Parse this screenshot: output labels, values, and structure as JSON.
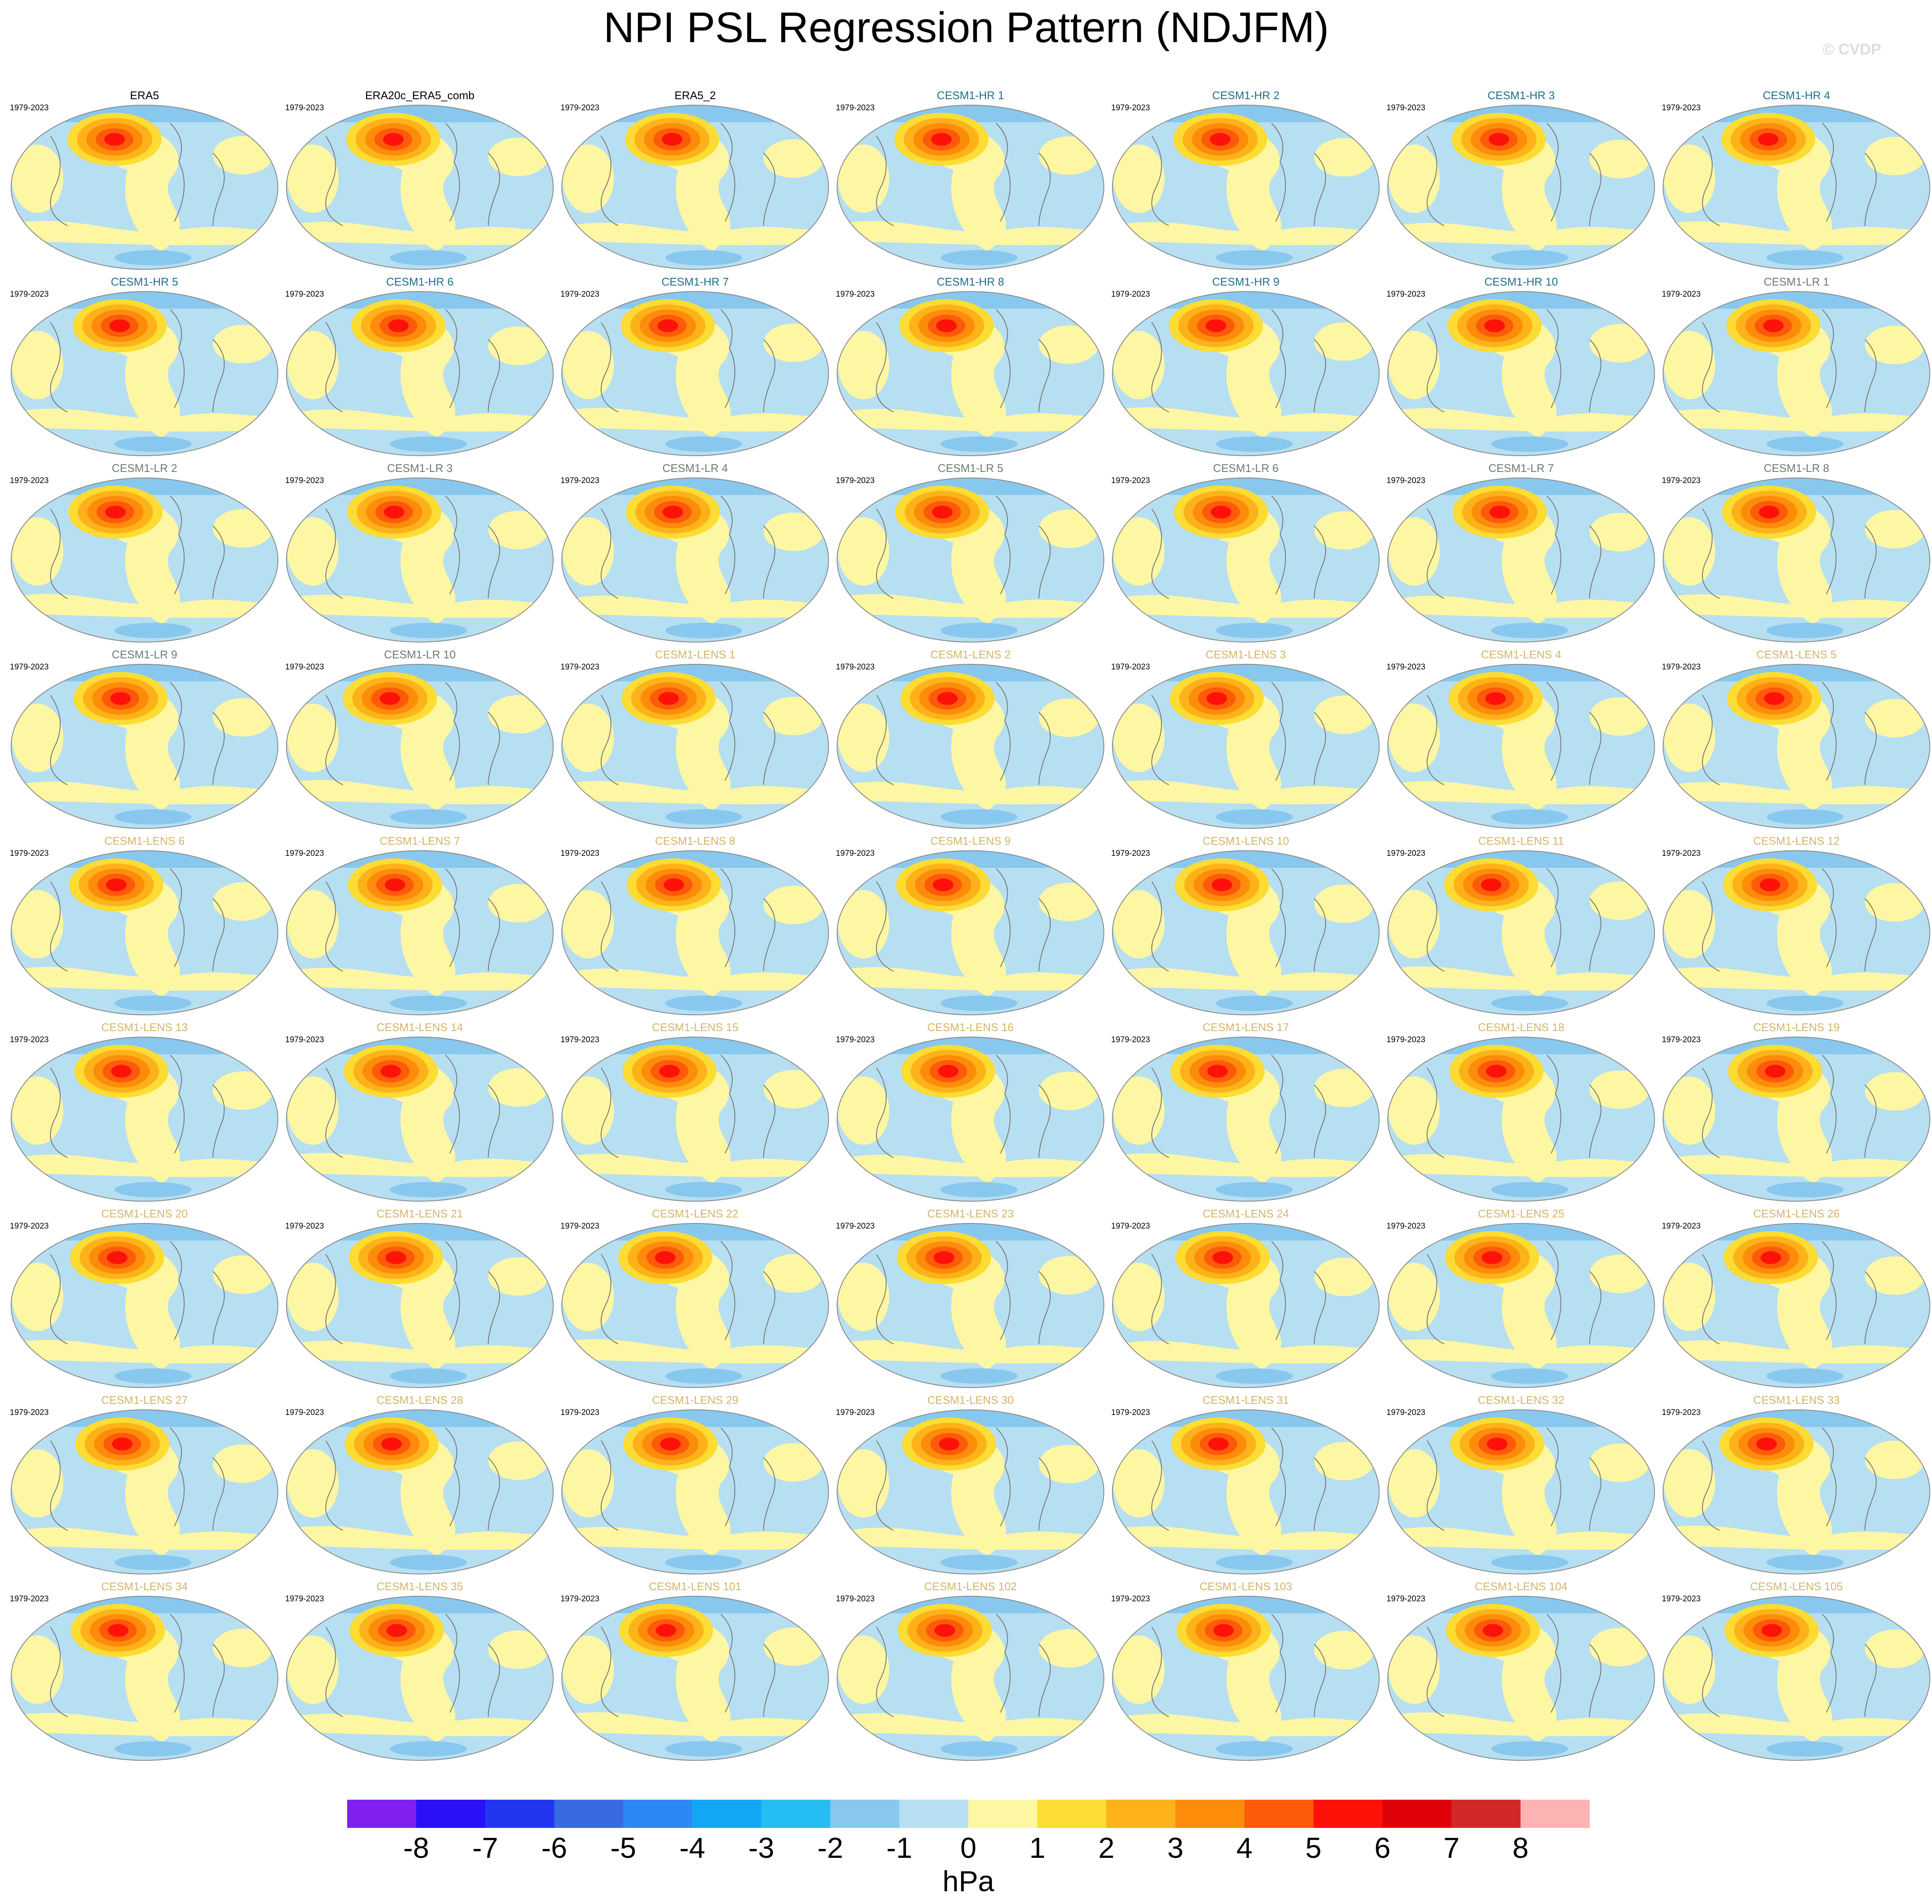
{
  "title": "NPI PSL Regression Pattern (NDJFM)",
  "watermark": "© CVDP",
  "panels": [
    {
      "title": "ERA5",
      "period": "1979-2023",
      "color": "#000000"
    },
    {
      "title": "ERA20c_ERA5_comb",
      "period": "1979-2023",
      "color": "#000000"
    },
    {
      "title": "ERA5_2",
      "period": "1979-2023",
      "color": "#000000"
    },
    {
      "title": "CESM1-HR 1",
      "period": "1979-2023",
      "color": "#1f6e8c"
    },
    {
      "title": "CESM1-HR 2",
      "period": "1979-2023",
      "color": "#1f6e8c"
    },
    {
      "title": "CESM1-HR 3",
      "period": "1979-2023",
      "color": "#1f6e8c"
    },
    {
      "title": "CESM1-HR 4",
      "period": "1979-2023",
      "color": "#1f6e8c"
    },
    {
      "title": "CESM1-HR 5",
      "period": "1979-2023",
      "color": "#1f6e8c"
    },
    {
      "title": "CESM1-HR 6",
      "period": "1979-2023",
      "color": "#1f6e8c"
    },
    {
      "title": "CESM1-HR 7",
      "period": "1979-2023",
      "color": "#1f6e8c"
    },
    {
      "title": "CESM1-HR 8",
      "period": "1979-2023",
      "color": "#1f6e8c"
    },
    {
      "title": "CESM1-HR 9",
      "period": "1979-2023",
      "color": "#1f6e8c"
    },
    {
      "title": "CESM1-HR 10",
      "period": "1979-2023",
      "color": "#1f6e8c"
    },
    {
      "title": "CESM1-LR 1",
      "period": "1979-2023",
      "color": "#6e7a72"
    },
    {
      "title": "CESM1-LR 2",
      "period": "1979-2023",
      "color": "#6e7a72"
    },
    {
      "title": "CESM1-LR 3",
      "period": "1979-2023",
      "color": "#6e7a72"
    },
    {
      "title": "CESM1-LR 4",
      "period": "1979-2023",
      "color": "#6e7a72"
    },
    {
      "title": "CESM1-LR 5",
      "period": "1979-2023",
      "color": "#6e7a72"
    },
    {
      "title": "CESM1-LR 6",
      "period": "1979-2023",
      "color": "#6e7a72"
    },
    {
      "title": "CESM1-LR 7",
      "period": "1979-2023",
      "color": "#6e7a72"
    },
    {
      "title": "CESM1-LR 8",
      "period": "1979-2023",
      "color": "#6e7a72"
    },
    {
      "title": "CESM1-LR 9",
      "period": "1979-2023",
      "color": "#6e7a72"
    },
    {
      "title": "CESM1-LR 10",
      "period": "1979-2023",
      "color": "#6e7a72"
    },
    {
      "title": "CESM1-LENS 1",
      "period": "1979-2023",
      "color": "#d4b56a"
    },
    {
      "title": "CESM1-LENS 2",
      "period": "1979-2023",
      "color": "#d4b56a"
    },
    {
      "title": "CESM1-LENS 3",
      "period": "1979-2023",
      "color": "#d4b56a"
    },
    {
      "title": "CESM1-LENS 4",
      "period": "1979-2023",
      "color": "#d4b56a"
    },
    {
      "title": "CESM1-LENS 5",
      "period": "1979-2023",
      "color": "#d4b56a"
    },
    {
      "title": "CESM1-LENS 6",
      "period": "1979-2023",
      "color": "#d4b56a"
    },
    {
      "title": "CESM1-LENS 7",
      "period": "1979-2023",
      "color": "#d4b56a"
    },
    {
      "title": "CESM1-LENS 8",
      "period": "1979-2023",
      "color": "#d4b56a"
    },
    {
      "title": "CESM1-LENS 9",
      "period": "1979-2023",
      "color": "#d4b56a"
    },
    {
      "title": "CESM1-LENS 10",
      "period": "1979-2023",
      "color": "#d4b56a"
    },
    {
      "title": "CESM1-LENS 11",
      "period": "1979-2023",
      "color": "#d4b56a"
    },
    {
      "title": "CESM1-LENS 12",
      "period": "1979-2023",
      "color": "#d4b56a"
    },
    {
      "title": "CESM1-LENS 13",
      "period": "1979-2023",
      "color": "#d4b56a"
    },
    {
      "title": "CESM1-LENS 14",
      "period": "1979-2023",
      "color": "#d4b56a"
    },
    {
      "title": "CESM1-LENS 15",
      "period": "1979-2023",
      "color": "#d4b56a"
    },
    {
      "title": "CESM1-LENS 16",
      "period": "1979-2023",
      "color": "#d4b56a"
    },
    {
      "title": "CESM1-LENS 17",
      "period": "1979-2023",
      "color": "#d4b56a"
    },
    {
      "title": "CESM1-LENS 18",
      "period": "1979-2023",
      "color": "#d4b56a"
    },
    {
      "title": "CESM1-LENS 19",
      "period": "1979-2023",
      "color": "#d4b56a"
    },
    {
      "title": "CESM1-LENS 20",
      "period": "1979-2023",
      "color": "#d4b56a"
    },
    {
      "title": "CESM1-LENS 21",
      "period": "1979-2023",
      "color": "#d4b56a"
    },
    {
      "title": "CESM1-LENS 22",
      "period": "1979-2023",
      "color": "#d4b56a"
    },
    {
      "title": "CESM1-LENS 23",
      "period": "1979-2023",
      "color": "#d4b56a"
    },
    {
      "title": "CESM1-LENS 24",
      "period": "1979-2023",
      "color": "#d4b56a"
    },
    {
      "title": "CESM1-LENS 25",
      "period": "1979-2023",
      "color": "#d4b56a"
    },
    {
      "title": "CESM1-LENS 26",
      "period": "1979-2023",
      "color": "#d4b56a"
    },
    {
      "title": "CESM1-LENS 27",
      "period": "1979-2023",
      "color": "#d4b56a"
    },
    {
      "title": "CESM1-LENS 28",
      "period": "1979-2023",
      "color": "#d4b56a"
    },
    {
      "title": "CESM1-LENS 29",
      "period": "1979-2023",
      "color": "#d4b56a"
    },
    {
      "title": "CESM1-LENS 30",
      "period": "1979-2023",
      "color": "#d4b56a"
    },
    {
      "title": "CESM1-LENS 31",
      "period": "1979-2023",
      "color": "#d4b56a"
    },
    {
      "title": "CESM1-LENS 32",
      "period": "1979-2023",
      "color": "#d4b56a"
    },
    {
      "title": "CESM1-LENS 33",
      "period": "1979-2023",
      "color": "#d4b56a"
    },
    {
      "title": "CESM1-LENS 34",
      "period": "1979-2023",
      "color": "#d4b56a"
    },
    {
      "title": "CESM1-LENS 35",
      "period": "1979-2023",
      "color": "#d4b56a"
    },
    {
      "title": "CESM1-LENS 101",
      "period": "1979-2023",
      "color": "#d4b56a"
    },
    {
      "title": "CESM1-LENS 102",
      "period": "1979-2023",
      "color": "#d4b56a"
    },
    {
      "title": "CESM1-LENS 103",
      "period": "1979-2023",
      "color": "#d4b56a"
    },
    {
      "title": "CESM1-LENS 104",
      "period": "1979-2023",
      "color": "#d4b56a"
    },
    {
      "title": "CESM1-LENS 105",
      "period": "1979-2023",
      "color": "#d4b56a"
    }
  ],
  "colorbar": {
    "colors": [
      "#7f1ff0",
      "#2a10f5",
      "#2236f0",
      "#3a6ae0",
      "#2b88f5",
      "#12a6f5",
      "#26bdf5",
      "#88c8ee",
      "#b7dff2",
      "#fdf7a3",
      "#fddc33",
      "#fdb21a",
      "#fd8c0a",
      "#fd5a0a",
      "#fd120a",
      "#e0020a",
      "#d3282a",
      "#fdb3b3"
    ],
    "ticks": [
      -8,
      -7,
      -6,
      -5,
      -4,
      -3,
      -2,
      -1,
      0,
      1,
      2,
      3,
      4,
      5,
      6,
      7,
      8
    ],
    "unit": "hPa"
  }
}
